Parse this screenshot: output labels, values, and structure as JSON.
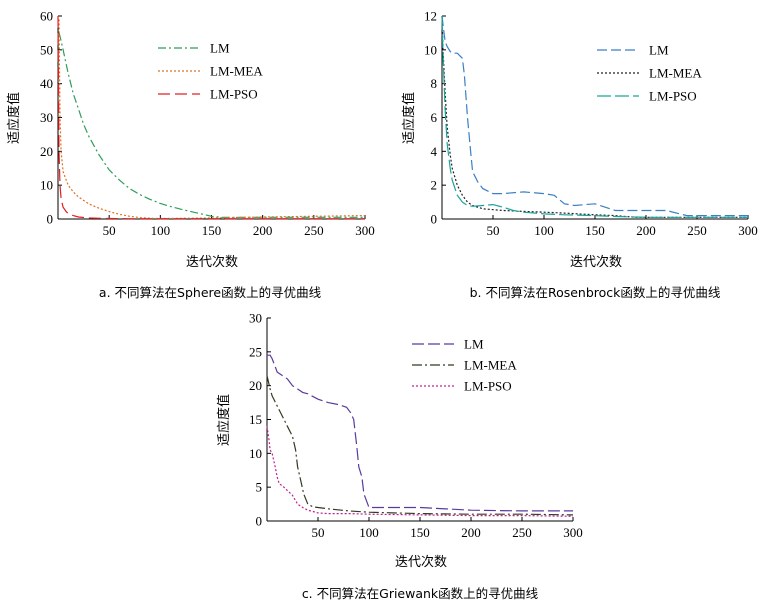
{
  "chart_data": [
    {
      "type": "line",
      "caption": "a.  不同算法在Sphere函数上的寻优曲线",
      "xlabel": "迭代次数",
      "ylabel": "适应度值",
      "xlim": [
        0,
        300
      ],
      "ylim": [
        0,
        60
      ],
      "xticks": [
        50,
        100,
        150,
        200,
        250,
        300
      ],
      "yticks": [
        0,
        10,
        20,
        30,
        40,
        50,
        60
      ],
      "legend": "top-right",
      "series": [
        {
          "name": "LM",
          "color": "#2e9e5b",
          "dash": "8,3,2,3",
          "x": [
            1,
            2,
            5,
            10,
            15,
            20,
            25,
            30,
            40,
            50,
            60,
            70,
            80,
            90,
            100,
            110,
            120,
            130,
            140,
            150,
            160,
            180,
            200,
            250,
            300
          ],
          "y": [
            55,
            54,
            50,
            43,
            37,
            32.5,
            28,
            24.5,
            19,
            14.5,
            11.5,
            9,
            7.2,
            5.8,
            4.6,
            3.7,
            2.9,
            2.2,
            1.5,
            0.8,
            0.5,
            0.5,
            0.5,
            0.5,
            0.5
          ]
        },
        {
          "name": "LM-MEA",
          "color": "#e07020",
          "dash": "2,2",
          "x": [
            1,
            2,
            3,
            5,
            8,
            10,
            15,
            20,
            30,
            40,
            50,
            60,
            70,
            80,
            90,
            100,
            150,
            200,
            250,
            300
          ],
          "y": [
            59,
            30,
            20,
            14,
            11.5,
            10,
            8,
            6.5,
            4.5,
            3.2,
            2.2,
            1.4,
            0.8,
            0.4,
            0.2,
            0.15,
            0.3,
            0.6,
            0.8,
            1.0
          ]
        },
        {
          "name": "LM-PSO",
          "color": "#e02020",
          "dash": "12,5",
          "x": [
            0,
            1,
            2,
            3,
            5,
            8,
            10,
            15,
            20,
            30,
            50,
            70,
            100,
            150,
            200,
            250,
            300
          ],
          "y": [
            60,
            20,
            10,
            6,
            3.5,
            2.2,
            1.6,
            1.0,
            0.6,
            0.3,
            0.15,
            0.1,
            0.1,
            0.1,
            0.1,
            0.1,
            0.1
          ]
        }
      ]
    },
    {
      "type": "line",
      "caption": "b.  不同算法在Rosenbrock函数上的寻优曲线",
      "xlabel": "迭代次数",
      "ylabel": "适应度值",
      "xlim": [
        0,
        300
      ],
      "ylim": [
        0,
        12
      ],
      "xticks": [
        50,
        100,
        150,
        200,
        250,
        300
      ],
      "yticks": [
        0,
        2,
        4,
        6,
        8,
        10,
        12
      ],
      "legend": "top-right",
      "series": [
        {
          "name": "LM",
          "color": "#3b7fc4",
          "dash": "10,4",
          "x": [
            0,
            1,
            3,
            5,
            8,
            10,
            15,
            20,
            22,
            25,
            28,
            30,
            35,
            40,
            50,
            60,
            80,
            100,
            110,
            120,
            130,
            140,
            150,
            160,
            170,
            180,
            200,
            220,
            240,
            250,
            300
          ],
          "y": [
            12,
            11.5,
            10.5,
            10.2,
            9.9,
            9.8,
            9.8,
            9.5,
            8.5,
            6.0,
            4.0,
            2.8,
            2.2,
            1.8,
            1.5,
            1.5,
            1.6,
            1.5,
            1.4,
            0.9,
            0.8,
            0.85,
            0.9,
            0.7,
            0.5,
            0.5,
            0.5,
            0.5,
            0.2,
            0.2,
            0.2
          ]
        },
        {
          "name": "LM-MEA",
          "color": "#222222",
          "dash": "2,2",
          "x": [
            0,
            1,
            3,
            5,
            8,
            10,
            15,
            20,
            25,
            30,
            40,
            60,
            80,
            100,
            120,
            150,
            170,
            180,
            190,
            200,
            250,
            300
          ],
          "y": [
            12,
            10,
            7.5,
            5.5,
            3.8,
            3.0,
            2.0,
            1.4,
            1.0,
            0.8,
            0.6,
            0.5,
            0.45,
            0.4,
            0.35,
            0.25,
            0.2,
            0.15,
            0.1,
            0.1,
            0.1,
            0.1
          ]
        },
        {
          "name": "LM-PSO",
          "color": "#1aa39a",
          "dash": "14,4",
          "x": [
            0,
            1,
            3,
            5,
            8,
            10,
            15,
            20,
            25,
            30,
            40,
            50,
            60,
            70,
            80,
            100,
            120,
            150,
            170,
            200,
            250,
            300
          ],
          "y": [
            12,
            9.8,
            6.5,
            4.5,
            3.0,
            2.3,
            1.4,
            1.0,
            0.8,
            0.75,
            0.8,
            0.85,
            0.7,
            0.5,
            0.4,
            0.3,
            0.25,
            0.2,
            0.15,
            0.1,
            0.1,
            0.1
          ]
        }
      ]
    },
    {
      "type": "line",
      "caption": "c.  不同算法在Griewank函数上的寻优曲线",
      "xlabel": "迭代次数",
      "ylabel": "适应度值",
      "xlim": [
        0,
        300
      ],
      "ylim": [
        0,
        30
      ],
      "xticks": [
        50,
        100,
        150,
        200,
        250,
        300
      ],
      "yticks": [
        0,
        5,
        10,
        15,
        20,
        25,
        30
      ],
      "legend": "top-right",
      "series": [
        {
          "name": "LM",
          "color": "#5b3aa0",
          "dash": "12,4",
          "x": [
            0,
            3,
            5,
            8,
            10,
            15,
            20,
            25,
            30,
            35,
            40,
            50,
            60,
            70,
            78,
            82,
            85,
            88,
            90,
            93,
            95,
            100,
            110,
            150,
            200,
            250,
            300
          ],
          "y": [
            24.5,
            24.5,
            24.0,
            22.8,
            22.0,
            21.5,
            21.0,
            20.0,
            19.5,
            19.0,
            18.8,
            18.0,
            17.5,
            17.2,
            16.8,
            16.0,
            15.0,
            11.0,
            8.0,
            6.5,
            4.0,
            2.0,
            2.0,
            2.0,
            1.6,
            1.5,
            1.5
          ]
        },
        {
          "name": "LM-MEA",
          "color": "#2f3b22",
          "dash": "10,3,2,3",
          "x": [
            0,
            3,
            5,
            10,
            15,
            20,
            25,
            28,
            30,
            33,
            36,
            40,
            45,
            50,
            60,
            80,
            100,
            150,
            200,
            250,
            300
          ],
          "y": [
            21.5,
            19.5,
            18.5,
            17.0,
            15.5,
            14.0,
            12.5,
            10.5,
            8.0,
            6.0,
            4.0,
            2.5,
            2.1,
            2.0,
            1.8,
            1.5,
            1.3,
            1.1,
            1.0,
            1.0,
            0.9
          ]
        },
        {
          "name": "LM-PSO",
          "color": "#c02090",
          "dash": "2,2",
          "x": [
            0,
            2,
            3,
            5,
            8,
            10,
            12,
            15,
            18,
            20,
            25,
            28,
            30,
            35,
            40,
            45,
            50,
            60,
            80,
            100,
            150,
            200,
            250,
            300
          ],
          "y": [
            14.0,
            12.0,
            10.5,
            10.0,
            8.0,
            6.5,
            5.5,
            5.2,
            4.8,
            4.5,
            3.8,
            3.0,
            2.5,
            2.0,
            1.6,
            1.4,
            1.2,
            1.1,
            1.1,
            1.0,
            0.9,
            0.8,
            0.8,
            0.7
          ]
        }
      ]
    }
  ]
}
